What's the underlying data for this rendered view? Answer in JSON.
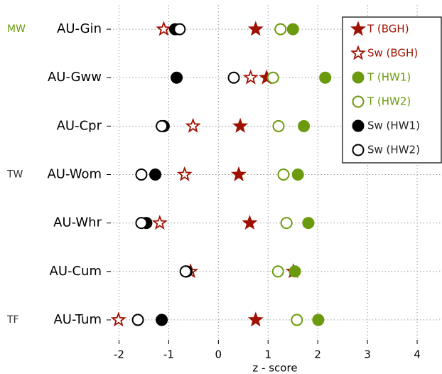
{
  "chart_data": {
    "type": "dot",
    "xlabel": "z - score",
    "categories": [
      "AU-Gin",
      "AU-Gww",
      "AU-Cpr",
      "AU-Wom",
      "AU-Whr",
      "AU-Cum",
      "AU-Tum"
    ],
    "groups": [
      {
        "label": "MW",
        "category": "AU-Gin",
        "color": "#6b9a0e"
      },
      {
        "label": "TW",
        "category": "AU-Wom",
        "color": "#333333"
      },
      {
        "label": "TF",
        "category": "AU-Tum",
        "color": "#333333"
      }
    ],
    "series": [
      {
        "name": "T (BGH)",
        "color": "#a01000",
        "marker": "star",
        "filled": true,
        "values": [
          0.75,
          0.97,
          0.44,
          0.41,
          0.63,
          1.51,
          0.75
        ]
      },
      {
        "name": "Sw (BGH)",
        "color": "#a01000",
        "marker": "star",
        "filled": false,
        "values": [
          -1.1,
          0.65,
          -0.51,
          -0.68,
          -1.18,
          -0.56,
          -2.01
        ]
      },
      {
        "name": "T (HW1)",
        "color": "#6b9a0e",
        "marker": "circle",
        "filled": true,
        "values": [
          1.5,
          2.15,
          1.72,
          1.6,
          1.81,
          1.54,
          2.01
        ]
      },
      {
        "name": "T (HW2)",
        "color": "#6b9a0e",
        "marker": "circle",
        "filled": false,
        "values": [
          1.25,
          1.1,
          1.21,
          1.31,
          1.37,
          1.2,
          1.58
        ]
      },
      {
        "name": "Sw (HW1)",
        "color": "#000000",
        "marker": "circle",
        "filled": true,
        "values": [
          -0.87,
          -0.84,
          -1.1,
          -1.27,
          -1.45,
          -0.64,
          -1.14
        ]
      },
      {
        "name": "Sw (HW2)",
        "color": "#000000",
        "marker": "circle",
        "filled": false,
        "values": [
          -0.78,
          0.31,
          -1.14,
          -1.55,
          -1.55,
          -0.66,
          -1.62
        ]
      }
    ],
    "xlim": [
      -2.25,
      4.5
    ],
    "xticks": [
      -2,
      -1,
      0,
      1,
      2,
      3,
      4
    ],
    "grid": true,
    "legend": "upper right"
  }
}
